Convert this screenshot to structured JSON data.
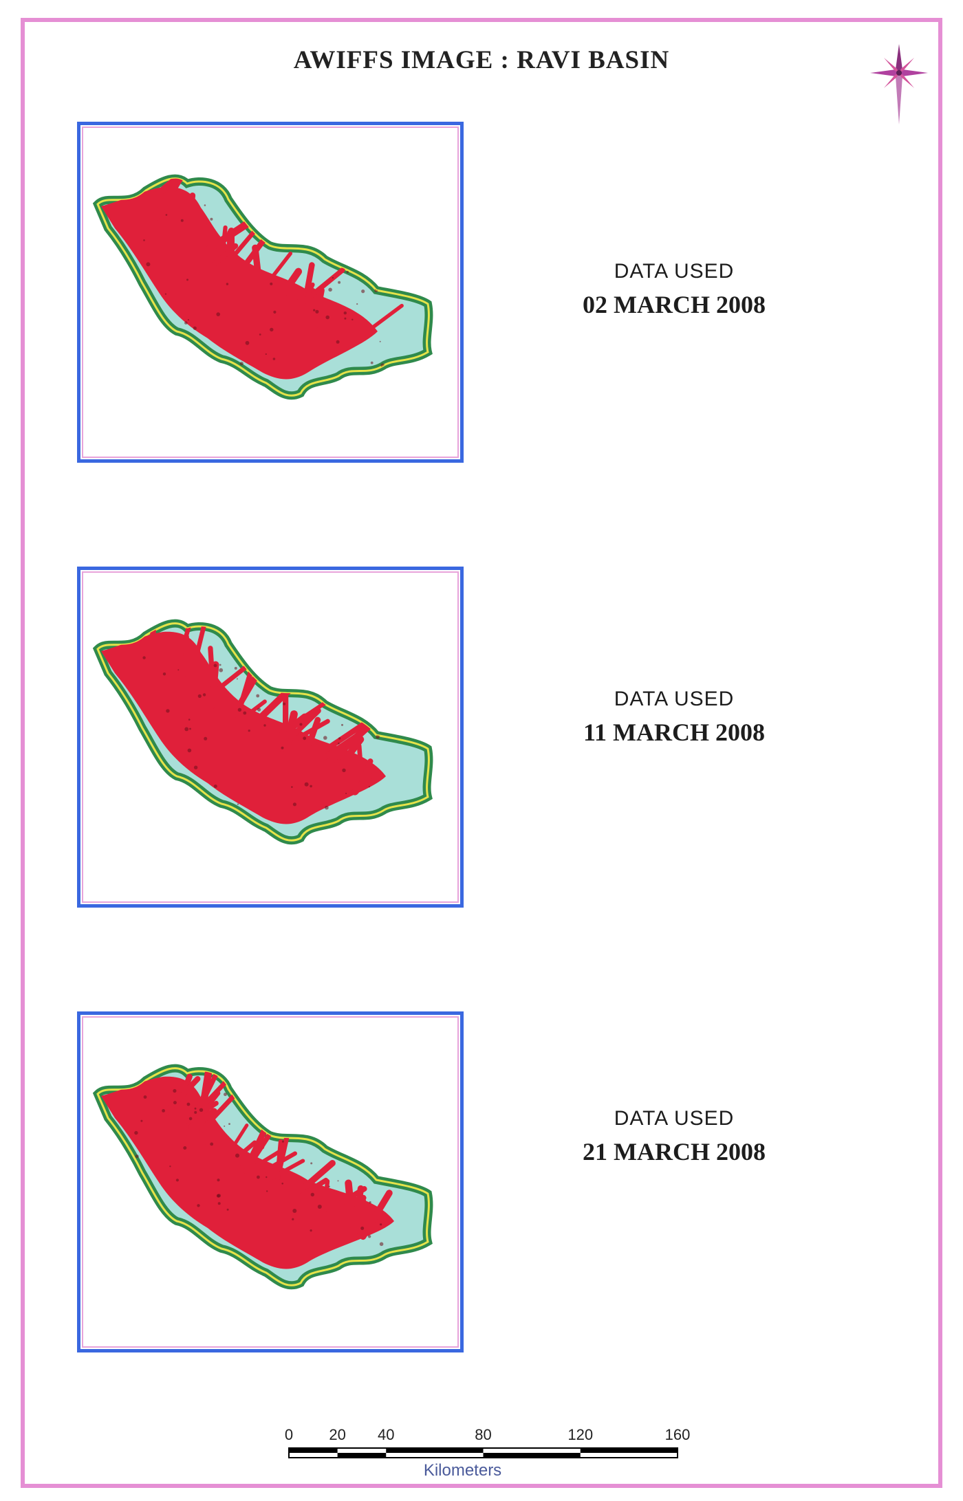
{
  "title": "AWIFFS IMAGE : RAVI BASIN",
  "north_arrow": {
    "icon": "compass-rose-icon"
  },
  "panels": [
    {
      "label_top": "DATA USED",
      "label_date": "02 MARCH 2008",
      "snow_variant": 1
    },
    {
      "label_top": "DATA USED",
      "label_date": "11 MARCH 2008",
      "snow_variant": 2
    },
    {
      "label_top": "DATA USED",
      "label_date": "21 MARCH 2008",
      "snow_variant": 3
    }
  ],
  "scale_bar": {
    "ticks": [
      "0",
      "20",
      "40",
      "80",
      "120",
      "160"
    ],
    "tick_values": [
      0,
      20,
      40,
      80,
      120,
      160
    ],
    "unit": "Kilometers"
  },
  "colors": {
    "frame": "#e58fd4",
    "panel_border": "#3a68e0",
    "vegetation": "#e0203a",
    "snow": "#a9dfd8",
    "basin_edge": "#2f8a4c",
    "basin_outline": "#e5e34a"
  }
}
